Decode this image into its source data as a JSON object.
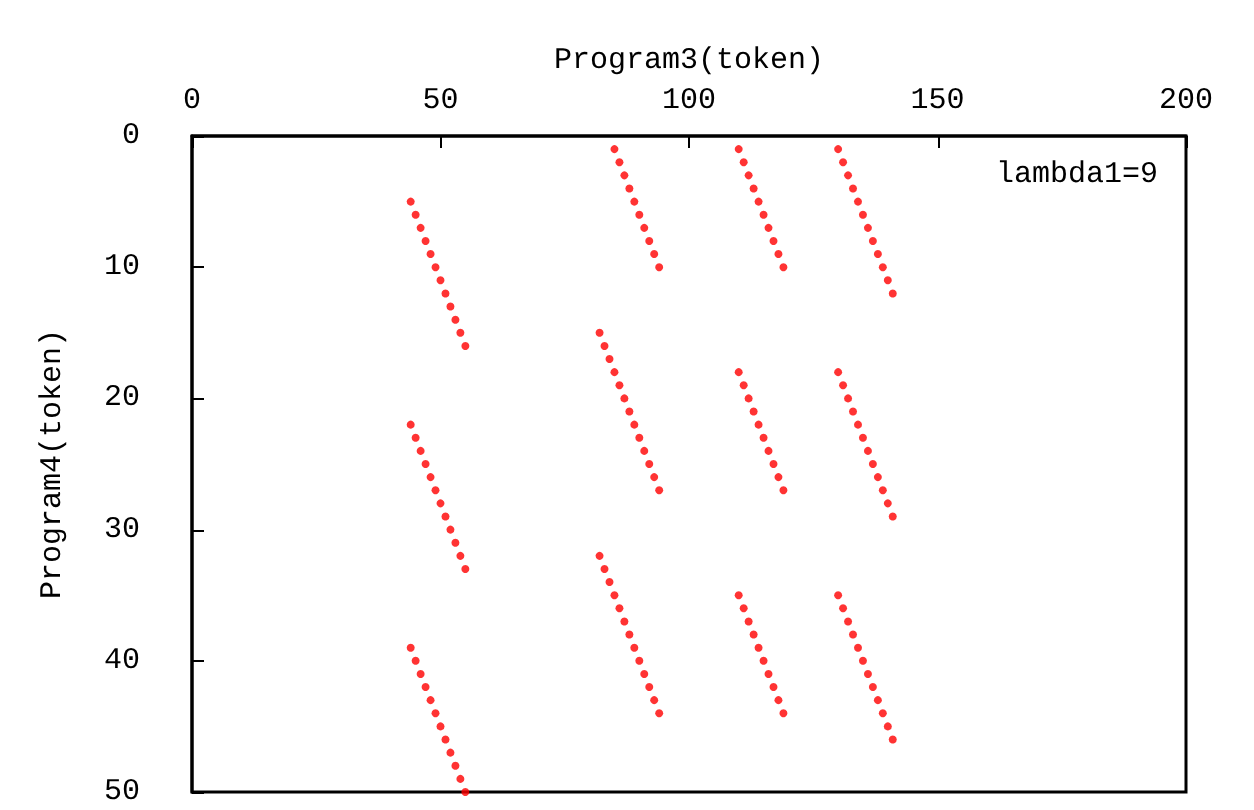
{
  "chart_data": {
    "type": "scatter",
    "xlabel": "Program3(token)",
    "ylabel": "Program4(token)",
    "xlim": [
      0,
      200
    ],
    "xticks": [
      0,
      50,
      100,
      150,
      200
    ],
    "ylim": [
      50,
      0
    ],
    "yticks": [
      0,
      10,
      20,
      30,
      40,
      50
    ],
    "grid": false,
    "marker": "circle",
    "annotations": [
      "lambda1=9"
    ],
    "series": [
      {
        "color": "#ff0000",
        "x": [
          44,
          45,
          46,
          47,
          48,
          49,
          50,
          51,
          52,
          53,
          54,
          55,
          44,
          45,
          46,
          47,
          48,
          49,
          50,
          51,
          52,
          53,
          54,
          55,
          44,
          45,
          46,
          47,
          48,
          49,
          50,
          51,
          52,
          53,
          54,
          55,
          85,
          86,
          87,
          88,
          89,
          90,
          91,
          92,
          93,
          94,
          82,
          83,
          84,
          85,
          86,
          87,
          88,
          89,
          90,
          91,
          92,
          93,
          94,
          82,
          83,
          84,
          85,
          86,
          87,
          88,
          89,
          90,
          91,
          92,
          93,
          94,
          110,
          111,
          112,
          113,
          114,
          115,
          116,
          117,
          118,
          119,
          110,
          111,
          112,
          113,
          114,
          115,
          116,
          117,
          118,
          119,
          110,
          111,
          112,
          113,
          114,
          115,
          116,
          117,
          118,
          119,
          130,
          131,
          132,
          133,
          134,
          135,
          136,
          137,
          138,
          139,
          140,
          141,
          130,
          131,
          132,
          133,
          134,
          135,
          136,
          137,
          138,
          139,
          140,
          141,
          130,
          131,
          132,
          133,
          134,
          135,
          136,
          137,
          138,
          139,
          140,
          141
        ],
        "values": [
          5,
          6,
          7,
          8,
          9,
          10,
          11,
          12,
          13,
          14,
          15,
          16,
          22,
          23,
          24,
          25,
          26,
          27,
          28,
          29,
          30,
          31,
          32,
          33,
          39,
          40,
          41,
          42,
          43,
          44,
          45,
          46,
          47,
          48,
          49,
          50,
          1,
          2,
          3,
          4,
          5,
          6,
          7,
          8,
          9,
          10,
          15,
          16,
          17,
          18,
          19,
          20,
          21,
          22,
          23,
          24,
          25,
          26,
          27,
          32,
          33,
          34,
          35,
          36,
          37,
          38,
          39,
          40,
          41,
          42,
          43,
          44,
          1,
          2,
          3,
          4,
          5,
          6,
          7,
          8,
          9,
          10,
          18,
          19,
          20,
          21,
          22,
          23,
          24,
          25,
          26,
          27,
          35,
          36,
          37,
          38,
          39,
          40,
          41,
          42,
          43,
          44,
          1,
          2,
          3,
          4,
          5,
          6,
          7,
          8,
          9,
          10,
          11,
          12,
          18,
          19,
          20,
          21,
          22,
          23,
          24,
          25,
          26,
          27,
          28,
          29,
          35,
          36,
          37,
          38,
          39,
          40,
          41,
          42,
          43,
          44,
          45,
          46
        ]
      }
    ]
  }
}
